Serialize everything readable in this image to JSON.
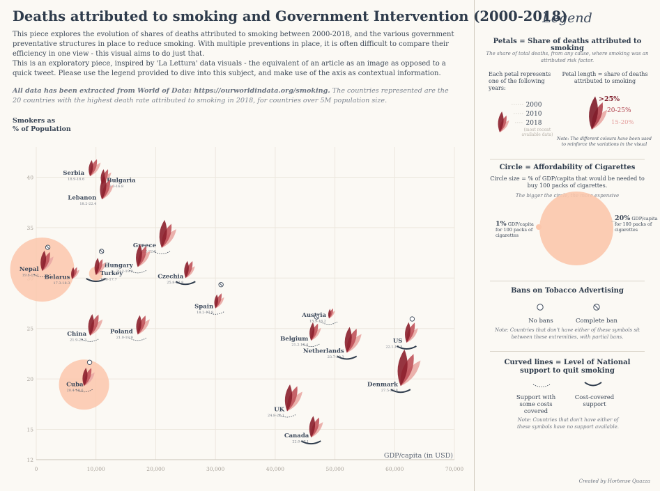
{
  "header": {
    "title": "Deaths attributed to smoking and Government Intervention (2000-2018)",
    "intro": [
      "This piece explores the evolution of shares of deaths attributed to smoking between 2000-2018, and the various government preventative structures in place to reduce smoking. With multiple preventions in place, it is often difficult to compare their efficiency in one view - this visual aims to do just that.",
      "This is an exploratory piece, inspired by 'La Lettura' data visuals - the equivalent of an article as an image as opposed to a quick tweet. Please use the legend provided to dive into this subject, and make use of the axis as contextual information."
    ],
    "note_bold": "All data has been extracted from World of Data: https://ourworldindata.org/smoking.",
    "note_rest": " The countries represented are the 20 countries with the highest death rate attributed to smoking in 2018, for countries over 5M population size."
  },
  "chart_data": {
    "type": "scatter",
    "ylabel": "Smokers as\n% of Population",
    "xlabel": "GDP/capita (in USD)",
    "xlim": [
      0,
      70000
    ],
    "ylim": [
      12,
      43
    ],
    "xticks": [
      {
        "v": 0,
        "label": "0"
      },
      {
        "v": 10000,
        "label": "10,000"
      },
      {
        "v": 20000,
        "label": "20,000"
      },
      {
        "v": 30000,
        "label": "30,000"
      },
      {
        "v": 40000,
        "label": "40,000"
      },
      {
        "v": 50000,
        "label": "50,000"
      },
      {
        "v": 60000,
        "label": "60,000"
      },
      {
        "v": 70000,
        "label": "70,000"
      }
    ],
    "yticks": [
      {
        "v": 12,
        "label": "12"
      },
      {
        "v": 15,
        "label": "15"
      },
      {
        "v": 20,
        "label": "20"
      },
      {
        "v": 25,
        "label": "25"
      },
      {
        "v": 30,
        "label": "30"
      },
      {
        "v": 35,
        "label": "35"
      },
      {
        "v": 40,
        "label": "40"
      }
    ],
    "colors": {
      "p2000": "#e9a8a4",
      "p2010": "#c0525a",
      "p2018": "#8b1f2c",
      "circle": "#fbc7ac",
      "support": "#2f3c4c"
    },
    "points": [
      {
        "country": "Serbia",
        "range": "18.9-18.6",
        "x": 9000,
        "y": 40.1,
        "s": [
          16,
          17,
          15
        ],
        "circle": 0,
        "ban": "",
        "support": "none",
        "lx": -8,
        "ly": -2,
        "anchor": "end"
      },
      {
        "country": "Bulgaria",
        "range": "18.0-16.8",
        "x": 11000,
        "y": 39.3,
        "s": [
          14,
          15,
          14
        ],
        "circle": 0,
        "ban": "",
        "support": "none",
        "lx": 7,
        "ly": -3,
        "anchor": "start"
      },
      {
        "country": "Lebanon",
        "range": "18.2-22.4",
        "x": 11000,
        "y": 37.8,
        "s": [
          17,
          20,
          22
        ],
        "circle": 0,
        "ban": "",
        "support": "none",
        "lx": -8,
        "ly": 0,
        "anchor": "end"
      },
      {
        "country": "Greece",
        "range": "22.2-22.6",
        "x": 21000,
        "y": 33.0,
        "s": [
          22,
          24,
          26
        ],
        "circle": 0,
        "ban": "",
        "support": "some",
        "lx": -8,
        "ly": -1,
        "anchor": "end"
      },
      {
        "country": "Hungary",
        "range": "20.2-19.9",
        "x": 17000,
        "y": 31.1,
        "s": [
          19,
          21,
          21
        ],
        "circle": 0,
        "ban": "",
        "support": "some",
        "lx": -7,
        "ly": 0,
        "anchor": "end"
      },
      {
        "country": "Nepal",
        "range": "19.8-19.2",
        "x": 1000,
        "y": 30.7,
        "s": [
          17,
          19,
          19
        ],
        "circle": 46,
        "ban": "complete",
        "support": "some",
        "lx": -5,
        "ly": 0,
        "anchor": "end"
      },
      {
        "country": "Belarus",
        "range": "17.3-18.3",
        "x": 6000,
        "y": 29.9,
        "s": [
          11,
          12,
          11
        ],
        "circle": 0,
        "ban": "",
        "support": "none",
        "lx": -3,
        "ly": 0,
        "anchor": "end"
      },
      {
        "country": "Turkey",
        "range": "18.8-17.7",
        "x": 10000,
        "y": 30.3,
        "s": [
          15,
          16,
          16
        ],
        "circle": 10,
        "ban": "complete",
        "support": "covered",
        "lx": 6,
        "ly": 0,
        "anchor": "start"
      },
      {
        "country": "Czechia",
        "range": "25.8-27.8",
        "x": 25000,
        "y": 30.0,
        "s": [
          14,
          17,
          16
        ],
        "circle": 0,
        "ban": "",
        "support": "covered",
        "lx": -3,
        "ly": 0,
        "anchor": "end"
      },
      {
        "country": "Spain",
        "range": "18.2-17.8",
        "x": 30000,
        "y": 27.0,
        "s": [
          13,
          15,
          13
        ],
        "circle": 0,
        "ban": "complete",
        "support": "some",
        "lx": -3,
        "ly": 0,
        "anchor": "end"
      },
      {
        "country": "Austria",
        "range": "15.9-16.2",
        "x": 49000,
        "y": 26.0,
        "s": [
          9,
          10,
          9
        ],
        "circle": 0,
        "ban": "",
        "support": "some",
        "lx": -4,
        "ly": -2,
        "anchor": "end"
      },
      {
        "country": "China",
        "range": "21.9-20.3",
        "x": 9000,
        "y": 24.3,
        "s": [
          19,
          21,
          20
        ],
        "circle": 0,
        "ban": "",
        "support": "some",
        "lx": -5,
        "ly": 0,
        "anchor": "end"
      },
      {
        "country": "Poland",
        "range": "21.0-18.9",
        "x": 17000,
        "y": 24.4,
        "s": [
          18,
          19,
          18
        ],
        "circle": 0,
        "ban": "",
        "support": "some",
        "lx": -7,
        "ly": -2,
        "anchor": "end"
      },
      {
        "country": "Belgium",
        "range": "21.2-18.4",
        "x": 46000,
        "y": 23.8,
        "s": [
          15,
          17,
          17
        ],
        "circle": 0,
        "ban": "complete",
        "support": "some",
        "lx": -4,
        "ly": 0,
        "anchor": "end"
      },
      {
        "country": "Netherlands",
        "range": "23.7-20.3",
        "x": 52000,
        "y": 22.6,
        "s": [
          22,
          24,
          24
        ],
        "circle": 0,
        "ban": "",
        "support": "covered",
        "lx": -4,
        "ly": 0,
        "anchor": "end"
      },
      {
        "country": "US",
        "range": "22.1-17.8",
        "x": 62000,
        "y": 23.6,
        "s": [
          17,
          20,
          19
        ],
        "circle": 0,
        "ban": "none",
        "support": "covered",
        "lx": -6,
        "ly": 0,
        "anchor": "end"
      },
      {
        "country": "Cuba",
        "range": "20.4-19.6",
        "x": 8000,
        "y": 19.3,
        "s": [
          16,
          18,
          17
        ],
        "circle": 36,
        "ban": "none",
        "support": "some",
        "lx": -1,
        "ly": 0,
        "anchor": "end"
      },
      {
        "country": "Denmark",
        "range": "27.5-22.8",
        "x": 61000,
        "y": 19.3,
        "s": [
          30,
          32,
          34
        ],
        "circle": 0,
        "ban": "",
        "support": "covered",
        "lx": -4,
        "ly": 0,
        "anchor": "end"
      },
      {
        "country": "UK",
        "range": "24.8-22.1",
        "x": 42000,
        "y": 16.8,
        "s": [
          23,
          25,
          25
        ],
        "circle": 0,
        "ban": "",
        "support": "some",
        "lx": -4,
        "ly": 0,
        "anchor": "end"
      },
      {
        "country": "Canada",
        "range": "22.0-17.1",
        "x": 46000,
        "y": 14.2,
        "s": [
          18,
          20,
          20
        ],
        "circle": 0,
        "ban": "",
        "support": "covered",
        "lx": -3,
        "ly": 0,
        "anchor": "end"
      }
    ]
  },
  "legend": {
    "title": "Legend",
    "petals": {
      "heading": "Petals = Share of deaths attributed to smoking",
      "sub": "The share of total deaths, from any cause, where smoking  was an attributed risk factor.",
      "years_text": "Each petal represents one of the following years:",
      "years": [
        "2000",
        "2010",
        "2018"
      ],
      "years_note": "(most recent available data)",
      "length_text": "Petal length = share of deaths attributed to smoking",
      "levels": [
        ">25%",
        "20-25%",
        "15-20%"
      ],
      "note": "Note: The different colours have been used to reinforce the variations in the visual"
    },
    "circle": {
      "heading": "Circle = Affordability of Cigarettes",
      "sub": "Circle size =  % of GDP/capita that would be needed to buy 100 packs of cigarettes.",
      "hint": "The bigger the circle, the more expensive",
      "small_value": "1%",
      "small_text": "GDP/capita for 100 packs of cigarettes",
      "big_value": "20%",
      "big_text": "GDP/capita for 100 packs of cigarettes"
    },
    "bans": {
      "heading": "Bans on Tobacco Advertising",
      "none_label": "No bans",
      "complete_label": "Complete ban",
      "note": "Note: Countries that don't have either of these symbols sit between these extremities, with partial bans."
    },
    "support": {
      "heading": "Curved lines = Level of National support to quit smoking",
      "some_label": "Support with some costs covered",
      "covered_label": "Cost-covered support",
      "note": "Note: Countries that don't have either of these symbols have no support available."
    },
    "credit": "Created by Hortense Quazza"
  }
}
